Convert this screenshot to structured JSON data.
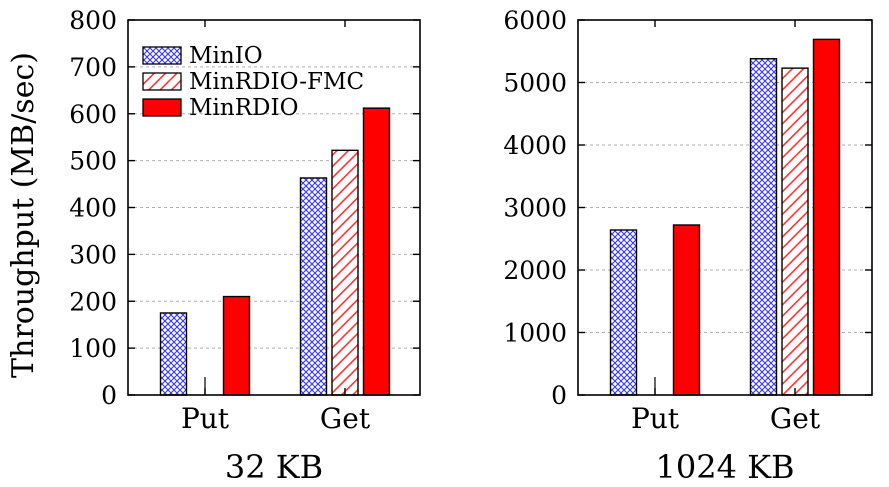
{
  "chart_data": [
    {
      "type": "bar",
      "title": "32 KB",
      "ylabel": "Throughput (MB/sec)",
      "xlabel": "",
      "categories": [
        "Put",
        "Get"
      ],
      "ylim": [
        0,
        800
      ],
      "yticks": [
        0,
        100,
        200,
        300,
        400,
        500,
        600,
        700,
        800
      ],
      "grid": "horizontal dashed",
      "legend": "top-left",
      "series": [
        {
          "name": "MinIO",
          "values": [
            175,
            463
          ],
          "pattern": "crosshatch",
          "color": "#3333ff"
        },
        {
          "name": "MinRDIO-FMC",
          "values": [
            null,
            522
          ],
          "pattern": "diagonal",
          "color": "#ff3333"
        },
        {
          "name": "MinRDIO",
          "values": [
            210,
            612
          ],
          "pattern": "solid",
          "color": "#ff0000"
        }
      ]
    },
    {
      "type": "bar",
      "title": "1024 KB",
      "ylabel": "",
      "xlabel": "",
      "categories": [
        "Put",
        "Get"
      ],
      "ylim": [
        0,
        6000
      ],
      "yticks": [
        0,
        1000,
        2000,
        3000,
        4000,
        5000,
        6000
      ],
      "grid": "horizontal dashed",
      "series": [
        {
          "name": "MinIO",
          "values": [
            2640,
            5380
          ],
          "pattern": "crosshatch",
          "color": "#3333ff"
        },
        {
          "name": "MinRDIO-FMC",
          "values": [
            null,
            5230
          ],
          "pattern": "diagonal",
          "color": "#ff3333"
        },
        {
          "name": "MinRDIO",
          "values": [
            2720,
            5690
          ],
          "pattern": "solid",
          "color": "#ff0000"
        }
      ]
    }
  ]
}
